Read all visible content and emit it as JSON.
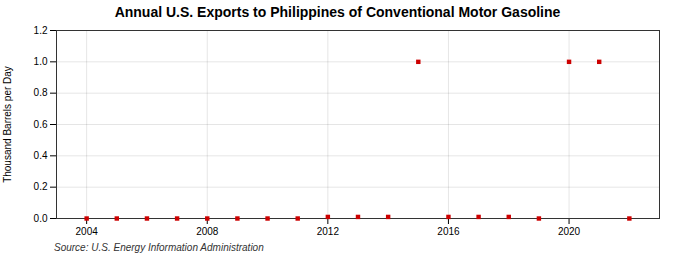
{
  "chart_data": {
    "type": "scatter",
    "title": "Annual U.S. Exports to Philippines of Conventional Motor Gasoline",
    "ylabel": "Thousand Barrels per Day",
    "annotations": [
      "Source: U.S. Energy Information Administration"
    ],
    "x": [
      2004,
      2005,
      2006,
      2007,
      2008,
      2009,
      2010,
      2011,
      2012,
      2013,
      2014,
      2015,
      2016,
      2017,
      2018,
      2019,
      2020,
      2021,
      2022
    ],
    "values": [
      0.0,
      0.0,
      0.0,
      0.0,
      0.0,
      0.0,
      0.0,
      0.0,
      0.01,
      0.01,
      0.01,
      1.0,
      0.01,
      0.01,
      0.01,
      0.0,
      1.0,
      1.0,
      0.0
    ],
    "color": "#cc0000",
    "marker": "square",
    "xlim": [
      2003.0,
      2023.0
    ],
    "xticks": [
      2004,
      2008,
      2012,
      2016,
      2020
    ],
    "ylim": [
      0.0,
      1.2
    ],
    "yticks": [
      {
        "value": 0.0,
        "label": "0.0"
      },
      0.2,
      0.4,
      0.6,
      0.8,
      {
        "value": 1.0,
        "label": "1.0"
      },
      1.2
    ],
    "grid": true
  }
}
